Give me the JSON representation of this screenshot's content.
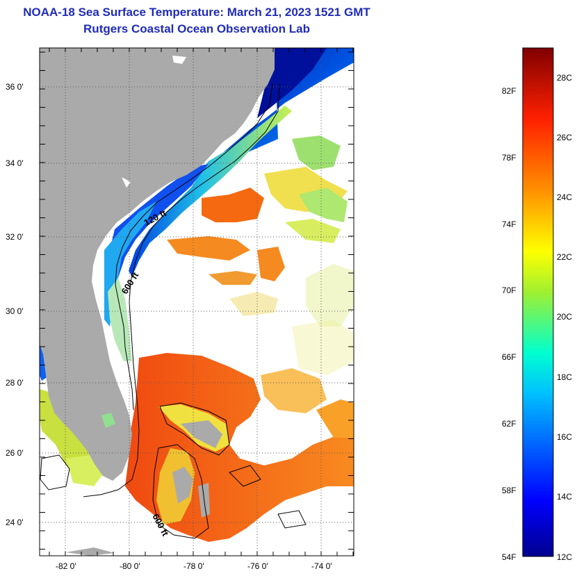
{
  "title": "NOAA-18 Sea Surface Temperature:  March 21, 2023 1521 GMT",
  "subtitle": "Rutgers Coastal Ocean Observation Lab",
  "map": {
    "lat_labels": [
      "36 0'",
      "34 0'",
      "32 0'",
      "30 0'",
      "28 0'",
      "26 0'",
      "24 0'"
    ],
    "lon_labels": [
      "-82 0'",
      "-80 0'",
      "-78 0'",
      "-76 0'",
      "-74 0'"
    ],
    "contour_labels": [
      "120 ft",
      "600 ft",
      "600 ft"
    ],
    "colors": {
      "land": "#aaaaaa",
      "cloud": "#ffffff",
      "frame": "#000000"
    }
  },
  "colorbar": {
    "fahrenheit_labels": [
      "82F",
      "78F",
      "74F",
      "70F",
      "66F",
      "62F",
      "58F",
      "54F"
    ],
    "celsius_labels": [
      "28C",
      "26C",
      "24C",
      "22C",
      "20C",
      "18C",
      "16C",
      "14C",
      "12C"
    ],
    "range_c": [
      12,
      29
    ]
  }
}
